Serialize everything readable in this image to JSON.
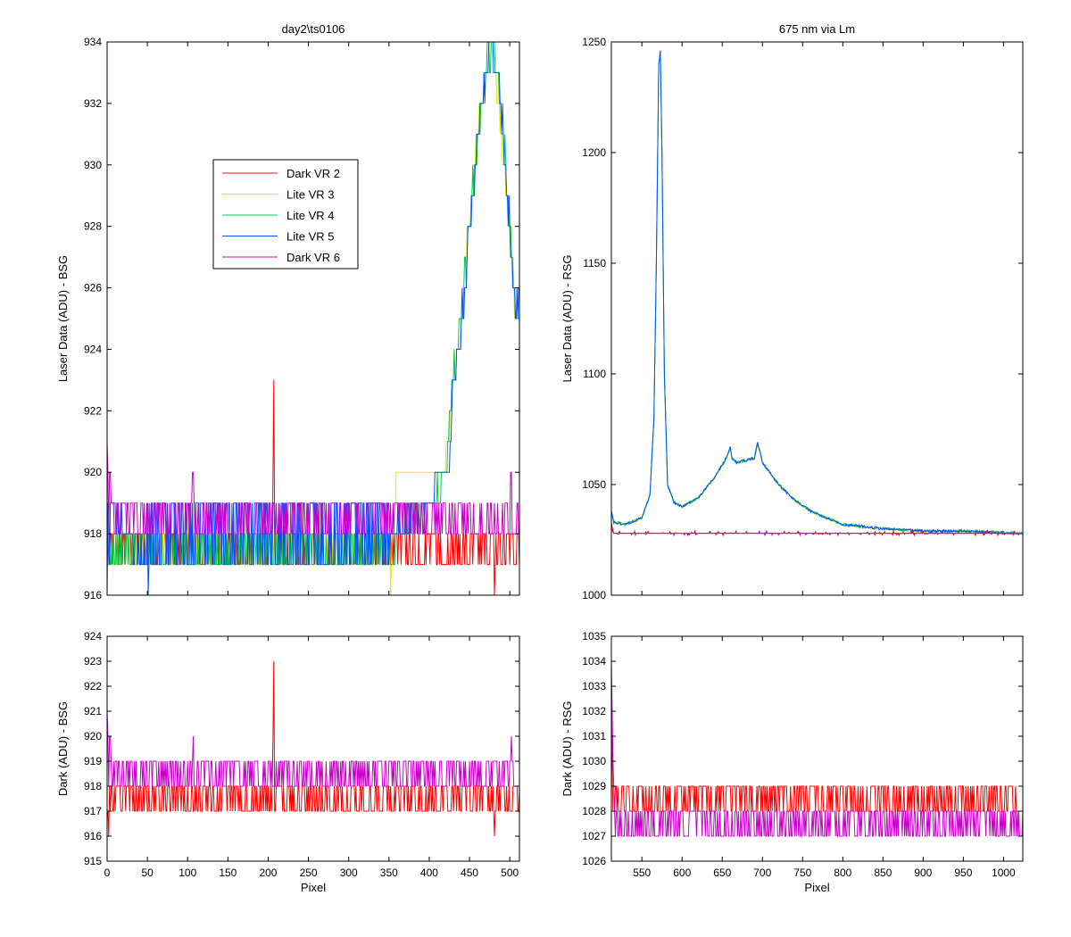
{
  "figure": {
    "legend_entries": [
      "Dark VR 2",
      "Lite VR 3",
      "Lite VR 4",
      "Lite VR 5",
      "Dark VR 6"
    ]
  },
  "chart_data": [
    {
      "id": "top_left",
      "type": "line",
      "title": "day2\\ts0106",
      "xlabel": "",
      "ylabel": "Laser Data (ADU) - BSG",
      "xlim": [
        0,
        512
      ],
      "ylim": [
        916,
        934
      ],
      "yticks": [
        916,
        918,
        920,
        922,
        924,
        926,
        928,
        930,
        932,
        934
      ],
      "xticks": [],
      "legend": "inside-upper-left",
      "series": [
        {
          "name": "Dark VR 2",
          "color": "#ff0000",
          "kind": "noise",
          "levels": [
            917,
            918
          ],
          "points": [
            [
              0,
              918
            ],
            [
              3,
              917
            ],
            [
              6,
              918
            ],
            [
              50,
              918
            ],
            [
              205,
              918
            ],
            [
              206,
              920
            ],
            [
              207,
              923
            ],
            [
              208,
              918
            ],
            [
              420,
              918
            ],
            [
              480,
              918
            ],
            [
              481,
              916
            ],
            [
              483,
              918
            ],
            [
              512,
              918
            ]
          ]
        },
        {
          "name": "Lite VR 3",
          "color": "#e6e600",
          "kind": "noise",
          "levels": [
            917,
            918
          ],
          "points": [
            [
              0,
              918
            ],
            [
              350,
              918
            ],
            [
              352,
              916
            ],
            [
              355,
              918
            ],
            [
              360,
              920
            ],
            [
              420,
              920
            ],
            [
              430,
              923
            ],
            [
              440,
              925
            ],
            [
              450,
              928
            ],
            [
              460,
              931
            ],
            [
              470,
              933
            ],
            [
              480,
              933
            ],
            [
              490,
              931
            ],
            [
              500,
              928
            ],
            [
              508,
              925
            ],
            [
              512,
              925
            ]
          ]
        },
        {
          "name": "Lite VR 4",
          "color": "#00cc44",
          "kind": "noise",
          "levels": [
            917,
            918
          ],
          "points": [
            [
              0,
              918
            ],
            [
              360,
              918
            ],
            [
              400,
              919
            ],
            [
              420,
              920
            ],
            [
              430,
              923
            ],
            [
              440,
              925
            ],
            [
              450,
              928
            ],
            [
              460,
              931
            ],
            [
              465,
              932
            ],
            [
              470,
              933
            ],
            [
              478,
              934
            ],
            [
              485,
              933
            ],
            [
              492,
              931
            ],
            [
              500,
              928
            ],
            [
              507,
              925
            ],
            [
              512,
              925
            ]
          ]
        },
        {
          "name": "Lite VR 5",
          "color": "#0050ff",
          "kind": "noise",
          "levels": [
            917,
            919
          ],
          "points": [
            [
              0,
              916
            ],
            [
              3,
              919
            ],
            [
              50,
              917
            ],
            [
              51,
              916
            ],
            [
              52,
              918
            ],
            [
              350,
              918
            ],
            [
              400,
              919
            ],
            [
              410,
              920
            ],
            [
              425,
              920
            ],
            [
              430,
              923
            ],
            [
              440,
              925
            ],
            [
              450,
              928
            ],
            [
              460,
              931
            ],
            [
              465,
              932
            ],
            [
              472,
              933
            ],
            [
              478,
              934
            ],
            [
              485,
              933
            ],
            [
              492,
              931
            ],
            [
              500,
              928
            ],
            [
              507,
              925
            ],
            [
              512,
              926
            ]
          ]
        },
        {
          "name": "Dark VR 6",
          "color": "#cc00cc",
          "kind": "noise",
          "levels": [
            918,
            919
          ],
          "points": [
            [
              0,
              921
            ],
            [
              2,
              919
            ],
            [
              4,
              920
            ],
            [
              6,
              919
            ],
            [
              105,
              919
            ],
            [
              107,
              920
            ],
            [
              108,
              919
            ],
            [
              460,
              919
            ],
            [
              480,
              919
            ],
            [
              500,
              919
            ],
            [
              502,
              920
            ],
            [
              503,
              918
            ],
            [
              512,
              918
            ]
          ]
        }
      ]
    },
    {
      "id": "top_right",
      "type": "line",
      "title": "675 nm via Lm",
      "xlabel": "",
      "ylabel": "Laser Data (ADU) - RSG",
      "xlim": [
        512,
        1024
      ],
      "ylim": [
        1000,
        1250
      ],
      "yticks": [
        1000,
        1050,
        1100,
        1150,
        1200,
        1250
      ],
      "xticks": [],
      "series": [
        {
          "name": "Lite VR 3",
          "color": "#e6e600",
          "kind": "smooth",
          "points": [
            [
              512,
              1038
            ],
            [
              515,
              1033
            ],
            [
              530,
              1032
            ],
            [
              550,
              1035
            ],
            [
              560,
              1045
            ],
            [
              565,
              1080
            ],
            [
              568,
              1150
            ],
            [
              571,
              1240
            ],
            [
              573,
              1245
            ],
            [
              575,
              1200
            ],
            [
              578,
              1100
            ],
            [
              582,
              1050
            ],
            [
              590,
              1042
            ],
            [
              600,
              1040
            ],
            [
              620,
              1044
            ],
            [
              640,
              1053
            ],
            [
              655,
              1062
            ],
            [
              660,
              1066
            ],
            [
              662,
              1062
            ],
            [
              668,
              1060
            ],
            [
              680,
              1061
            ],
            [
              690,
              1062
            ],
            [
              694,
              1068
            ],
            [
              700,
              1060
            ],
            [
              720,
              1050
            ],
            [
              740,
              1043
            ],
            [
              760,
              1038
            ],
            [
              800,
              1032
            ],
            [
              850,
              1030
            ],
            [
              900,
              1029
            ],
            [
              950,
              1029
            ],
            [
              1024,
              1028
            ]
          ]
        },
        {
          "name": "Lite VR 4",
          "color": "#00cc44",
          "kind": "smooth",
          "points": [
            [
              512,
              1038
            ],
            [
              515,
              1033
            ],
            [
              530,
              1032
            ],
            [
              550,
              1035
            ],
            [
              560,
              1045
            ],
            [
              565,
              1080
            ],
            [
              568,
              1150
            ],
            [
              571,
              1240
            ],
            [
              573,
              1246
            ],
            [
              575,
              1200
            ],
            [
              578,
              1100
            ],
            [
              582,
              1050
            ],
            [
              590,
              1042
            ],
            [
              600,
              1040
            ],
            [
              620,
              1044
            ],
            [
              640,
              1053
            ],
            [
              655,
              1062
            ],
            [
              660,
              1067
            ],
            [
              662,
              1062
            ],
            [
              668,
              1060
            ],
            [
              680,
              1061
            ],
            [
              690,
              1062
            ],
            [
              694,
              1069
            ],
            [
              700,
              1060
            ],
            [
              720,
              1050
            ],
            [
              740,
              1043
            ],
            [
              760,
              1038
            ],
            [
              800,
              1032
            ],
            [
              850,
              1030
            ],
            [
              900,
              1029
            ],
            [
              950,
              1029
            ],
            [
              1024,
              1028
            ]
          ]
        },
        {
          "name": "Lite VR 5",
          "color": "#0050ff",
          "kind": "smooth",
          "points": [
            [
              512,
              1038
            ],
            [
              515,
              1033
            ],
            [
              530,
              1032
            ],
            [
              550,
              1035
            ],
            [
              560,
              1045
            ],
            [
              565,
              1080
            ],
            [
              568,
              1150
            ],
            [
              571,
              1240
            ],
            [
              573,
              1246
            ],
            [
              575,
              1200
            ],
            [
              578,
              1100
            ],
            [
              582,
              1050
            ],
            [
              590,
              1042
            ],
            [
              600,
              1040
            ],
            [
              620,
              1044
            ],
            [
              640,
              1053
            ],
            [
              655,
              1062
            ],
            [
              660,
              1067
            ],
            [
              662,
              1062
            ],
            [
              668,
              1060
            ],
            [
              680,
              1061
            ],
            [
              690,
              1062
            ],
            [
              694,
              1069
            ],
            [
              700,
              1060
            ],
            [
              720,
              1050
            ],
            [
              740,
              1043
            ],
            [
              760,
              1038
            ],
            [
              800,
              1032
            ],
            [
              850,
              1030
            ],
            [
              900,
              1029
            ],
            [
              950,
              1029
            ],
            [
              1024,
              1028
            ]
          ]
        },
        {
          "name": "Dark VR 2",
          "color": "#ff0000",
          "kind": "flat",
          "points": [
            [
              512,
              1032
            ],
            [
              515,
              1028
            ],
            [
              1024,
              1028
            ]
          ]
        },
        {
          "name": "Dark VR 6",
          "color": "#cc00cc",
          "kind": "flat",
          "points": [
            [
              512,
              1030
            ],
            [
              515,
              1028
            ],
            [
              1024,
              1028
            ]
          ]
        }
      ]
    },
    {
      "id": "bottom_left",
      "type": "line",
      "title": "",
      "xlabel": "Pixel",
      "ylabel": "Dark (ADU) - BSG",
      "xlim": [
        0,
        512
      ],
      "ylim": [
        915,
        924
      ],
      "yticks": [
        915,
        916,
        917,
        918,
        919,
        920,
        921,
        922,
        923,
        924
      ],
      "xticks": [
        0,
        50,
        100,
        150,
        200,
        250,
        300,
        350,
        400,
        450,
        500
      ],
      "series": [
        {
          "name": "Dark VR 2",
          "color": "#ff0000",
          "kind": "noise",
          "levels": [
            917,
            918
          ],
          "points": [
            [
              0,
              918
            ],
            [
              2,
              916
            ],
            [
              4,
              918
            ],
            [
              205,
              918
            ],
            [
              206,
              920
            ],
            [
              207,
              923
            ],
            [
              208,
              918
            ],
            [
              480,
              918
            ],
            [
              481,
              916
            ],
            [
              483,
              918
            ],
            [
              512,
              918
            ]
          ]
        },
        {
          "name": "Dark VR 6",
          "color": "#cc00cc",
          "kind": "noise",
          "levels": [
            918,
            919
          ],
          "points": [
            [
              0,
              921
            ],
            [
              2,
              919
            ],
            [
              4,
              920
            ],
            [
              6,
              919
            ],
            [
              105,
              919
            ],
            [
              107,
              920
            ],
            [
              108,
              919
            ],
            [
              500,
              919
            ],
            [
              502,
              920
            ],
            [
              503,
              918
            ],
            [
              512,
              918
            ]
          ]
        }
      ]
    },
    {
      "id": "bottom_right",
      "type": "line",
      "title": "",
      "xlabel": "Pixel",
      "ylabel": "Dark (ADU) - RSG",
      "xlim": [
        512,
        1024
      ],
      "ylim": [
        1026,
        1035
      ],
      "yticks": [
        1026,
        1027,
        1028,
        1029,
        1030,
        1031,
        1032,
        1033,
        1034,
        1035
      ],
      "xticks": [
        550,
        600,
        650,
        700,
        750,
        800,
        850,
        900,
        950,
        1000
      ],
      "series": [
        {
          "name": "Dark VR 2",
          "color": "#ff0000",
          "kind": "noise",
          "levels": [
            1028,
            1029
          ],
          "points": [
            [
              512,
              1032
            ],
            [
              514,
              1028
            ],
            [
              1024,
              1028
            ]
          ]
        },
        {
          "name": "Dark VR 6",
          "color": "#cc00cc",
          "kind": "noise",
          "levels": [
            1027,
            1028
          ],
          "points": [
            [
              512,
              1034
            ],
            [
              514,
              1030
            ],
            [
              516,
              1028
            ],
            [
              1024,
              1028
            ]
          ]
        }
      ]
    }
  ]
}
